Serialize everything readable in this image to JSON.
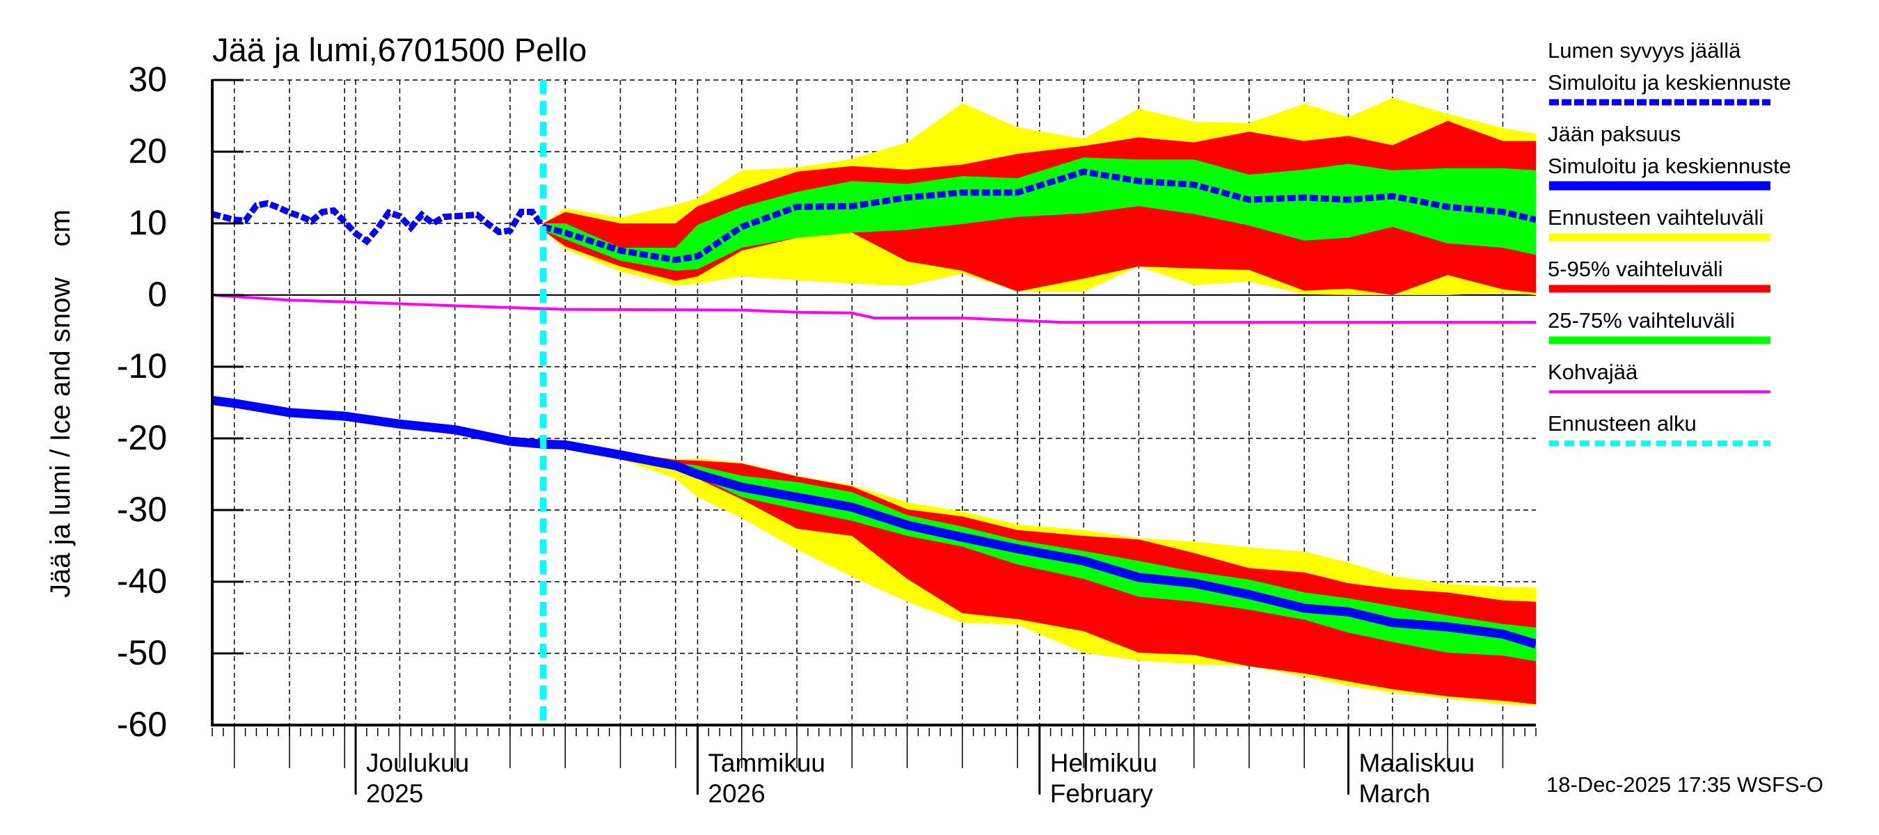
{
  "chart_data": {
    "type": "area",
    "title": "Jää ja lumi,6701500 Pello",
    "ylabel": "Jää ja lumi / Ice and snow    cm",
    "xlabel": "",
    "ylim": [
      -60,
      30
    ],
    "yticks": [
      30,
      20,
      10,
      0,
      -10,
      -20,
      -30,
      -40,
      -50,
      -60
    ],
    "x_range": [
      "2025-11-18",
      "2026-03-18"
    ],
    "grid": true,
    "legend_position": "right",
    "forecast_start": "2025-12-18",
    "month_labels": [
      {
        "date": "2025-12-01",
        "line1": "Joulukuu",
        "line2": "2025"
      },
      {
        "date": "2026-01-01",
        "line1": "Tammikuu",
        "line2": "2026"
      },
      {
        "date": "2026-02-01",
        "line1": "Helmikuu",
        "line2": "February"
      },
      {
        "date": "2026-03-01",
        "line1": "Maaliskuu",
        "line2": "March"
      }
    ],
    "timestamp": "18-Dec-2025 17:35 WSFS-O",
    "colors": {
      "snow_line": "#0000ff",
      "ice_line": "#0000ff",
      "range_full": "#ffff00",
      "range_5_95": "#ff0000",
      "range_25_75": "#00ff00",
      "slush_ice": "#ff00ff",
      "forecast_start": "#00ffff"
    },
    "legend": [
      {
        "line1": "Lumen syvyys jäällä",
        "line2": "Simuloitu ja keskiennuste",
        "style": "dotted",
        "color": "#0000ff"
      },
      {
        "line1": "Jään paksuus",
        "line2": "Simuloitu ja keskiennuste",
        "style": "solid-thick",
        "color": "#0000ff"
      },
      {
        "line1": "Ennusteen vaihteluväli",
        "line2": "",
        "style": "band",
        "color": "#ffff00"
      },
      {
        "line1": "5-95% vaihteluväli",
        "line2": "",
        "style": "band",
        "color": "#ff0000"
      },
      {
        "line1": "25-75% vaihteluväli",
        "line2": "",
        "style": "band",
        "color": "#00ff00"
      },
      {
        "line1": "Kohvajää",
        "line2": "",
        "style": "solid",
        "color": "#ff00ff"
      },
      {
        "line1": "Ennusteen alku",
        "line2": "",
        "style": "dashed",
        "color": "#00ffff"
      }
    ],
    "snow_observed": {
      "x": [
        "2025-11-18",
        "2025-11-19",
        "2025-11-20",
        "2025-11-21",
        "2025-11-22",
        "2025-11-23",
        "2025-11-24",
        "2025-11-25",
        "2025-11-26",
        "2025-11-27",
        "2025-11-28",
        "2025-11-29",
        "2025-11-30",
        "2025-12-01",
        "2025-12-02",
        "2025-12-03",
        "2025-12-04",
        "2025-12-05",
        "2025-12-06",
        "2025-12-07",
        "2025-12-08",
        "2025-12-09",
        "2025-12-10",
        "2025-12-11",
        "2025-12-12",
        "2025-12-13",
        "2025-12-14",
        "2025-12-15",
        "2025-12-16",
        "2025-12-17",
        "2025-12-18"
      ],
      "values": [
        11.3,
        10.9,
        10.5,
        10.4,
        12.5,
        12.8,
        12.2,
        11.5,
        11.0,
        10.3,
        11.6,
        11.8,
        10.2,
        8.6,
        7.5,
        9.3,
        11.5,
        11.0,
        9.4,
        11.2,
        10.0,
        10.9,
        11.0,
        11.1,
        11.2,
        9.9,
        8.8,
        9.0,
        11.6,
        11.6,
        9.5
      ]
    },
    "snow_forecast": {
      "x": [
        "2025-12-18",
        "2025-12-20",
        "2025-12-25",
        "2025-12-30",
        "2026-01-01",
        "2026-01-05",
        "2026-01-10",
        "2026-01-15",
        "2026-01-20",
        "2026-01-25",
        "2026-01-30",
        "2026-02-05",
        "2026-02-10",
        "2026-02-15",
        "2026-02-20",
        "2026-02-25",
        "2026-03-01",
        "2026-03-05",
        "2026-03-10",
        "2026-03-15",
        "2026-03-18"
      ],
      "median": [
        9.5,
        8.7,
        6.2,
        4.9,
        5.4,
        9.5,
        12.3,
        12.4,
        13.6,
        14.3,
        14.3,
        17.2,
        15.9,
        15.4,
        13.3,
        13.6,
        13.3,
        13.8,
        12.3,
        11.6,
        10.5
      ],
      "p25": [
        9.0,
        7.8,
        4.8,
        3.4,
        3.6,
        6.6,
        8.0,
        8.7,
        9.1,
        9.9,
        10.9,
        11.4,
        12.4,
        11.3,
        9.7,
        7.6,
        8.0,
        9.5,
        7.2,
        6.6,
        5.6
      ],
      "p75": [
        10.0,
        10.0,
        6.6,
        6.6,
        9.8,
        12.3,
        14.4,
        15.9,
        15.5,
        16.6,
        16.3,
        19.2,
        18.9,
        18.9,
        16.8,
        17.5,
        18.3,
        17.4,
        17.7,
        17.7,
        17.4
      ],
      "p5": [
        9.0,
        6.8,
        4.0,
        2.0,
        2.6,
        6.2,
        8.0,
        8.7,
        4.7,
        3.4,
        0.5,
        2.3,
        4.0,
        3.7,
        3.5,
        0.6,
        0.9,
        0.0,
        2.8,
        0.8,
        0.3
      ],
      "p95": [
        10.0,
        11.6,
        10.0,
        10.0,
        12.4,
        14.6,
        17.2,
        18.0,
        17.5,
        18.2,
        19.7,
        20.8,
        22.0,
        21.3,
        22.8,
        21.5,
        22.2,
        20.9,
        24.3,
        21.5,
        21.5
      ],
      "min": [
        9.0,
        6.4,
        3.3,
        1.3,
        1.6,
        2.6,
        2.1,
        1.6,
        1.3,
        3.0,
        0.5,
        0.5,
        4.0,
        1.4,
        1.9,
        0.1,
        0.0,
        0.0,
        0.0,
        0.3,
        0.0
      ],
      "max": [
        10.0,
        12.1,
        10.8,
        12.6,
        13.5,
        17.4,
        17.8,
        19.0,
        21.3,
        26.8,
        23.4,
        21.8,
        26.0,
        24.2,
        24.0,
        26.7,
        24.8,
        27.5,
        25.3,
        23.3,
        22.5
      ]
    },
    "ice_observed": {
      "x": [
        "2025-11-18",
        "2025-11-20",
        "2025-11-25",
        "2025-11-30",
        "2025-12-05",
        "2025-12-10",
        "2025-12-15",
        "2025-12-18"
      ],
      "values": [
        -14.7,
        -15.1,
        -16.4,
        -16.9,
        -18.0,
        -18.8,
        -20.4,
        -20.8
      ]
    },
    "ice_forecast": {
      "x": [
        "2025-12-18",
        "2025-12-20",
        "2025-12-25",
        "2025-12-30",
        "2026-01-01",
        "2026-01-05",
        "2026-01-10",
        "2026-01-15",
        "2026-01-20",
        "2026-01-25",
        "2026-01-30",
        "2026-02-05",
        "2026-02-10",
        "2026-02-15",
        "2026-02-20",
        "2026-02-25",
        "2026-03-01",
        "2026-03-05",
        "2026-03-10",
        "2026-03-15",
        "2026-03-18"
      ],
      "median": [
        -20.8,
        -20.9,
        -22.3,
        -23.8,
        -25.0,
        -26.8,
        -28.2,
        -29.6,
        -32.1,
        -33.8,
        -35.4,
        -37.1,
        -39.4,
        -40.2,
        -41.8,
        -43.7,
        -44.2,
        -45.7,
        -46.3,
        -47.3,
        -48.7
      ],
      "p75": [
        -20.8,
        -20.9,
        -22.1,
        -23.4,
        -23.8,
        -25.2,
        -26.1,
        -27.5,
        -30.7,
        -32.3,
        -34.2,
        -35.7,
        -37.1,
        -38.6,
        -39.7,
        -41.5,
        -42.3,
        -43.4,
        -44.7,
        -45.9,
        -46.4
      ],
      "p25": [
        -20.8,
        -20.9,
        -22.5,
        -23.9,
        -25.3,
        -28.2,
        -29.9,
        -31.5,
        -33.6,
        -35.1,
        -37.6,
        -39.6,
        -42.1,
        -42.8,
        -43.9,
        -45.3,
        -47.1,
        -48.4,
        -49.9,
        -50.3,
        -51.1
      ],
      "p95": [
        -20.8,
        -20.9,
        -21.9,
        -23.0,
        -23.1,
        -23.5,
        -25.3,
        -26.7,
        -29.9,
        -30.9,
        -32.8,
        -33.6,
        -34.1,
        -36.0,
        -38.1,
        -38.7,
        -40.2,
        -41.0,
        -41.5,
        -42.6,
        -42.8
      ],
      "p5": [
        -20.8,
        -20.9,
        -22.7,
        -24.2,
        -25.6,
        -28.5,
        -32.6,
        -33.6,
        -39.6,
        -44.4,
        -45.2,
        -46.9,
        -49.9,
        -50.2,
        -51.8,
        -52.8,
        -53.9,
        -55.0,
        -56.0,
        -56.6,
        -57.1
      ],
      "max": [
        -20.8,
        -20.9,
        -21.8,
        -22.9,
        -22.8,
        -23.4,
        -25.2,
        -26.5,
        -28.9,
        -30.2,
        -32.0,
        -32.8,
        -33.9,
        -34.4,
        -35.2,
        -35.8,
        -37.3,
        -39.2,
        -40.3,
        -40.7,
        -40.8
      ],
      "min": [
        -20.8,
        -20.9,
        -22.9,
        -25.6,
        -28.2,
        -31.1,
        -35.5,
        -39.3,
        -42.8,
        -45.7,
        -46.0,
        -49.9,
        -51.0,
        -51.5,
        -51.8,
        -53.2,
        -54.5,
        -55.5,
        -56.3,
        -57.1,
        -57.3
      ]
    },
    "slush_ice": {
      "x": [
        "2025-11-18",
        "2025-11-20",
        "2025-11-25",
        "2025-12-01",
        "2025-12-10",
        "2025-12-18",
        "2025-12-20",
        "2026-01-05",
        "2026-01-10",
        "2026-01-15",
        "2026-01-17",
        "2026-01-25",
        "2026-01-28",
        "2026-02-03",
        "2026-03-18"
      ],
      "values": [
        0,
        -0.2,
        -0.7,
        -1.0,
        -1.5,
        -1.9,
        -2.0,
        -2.1,
        -2.4,
        -2.5,
        -3.2,
        -3.2,
        -3.4,
        -3.8,
        -3.8
      ]
    }
  }
}
